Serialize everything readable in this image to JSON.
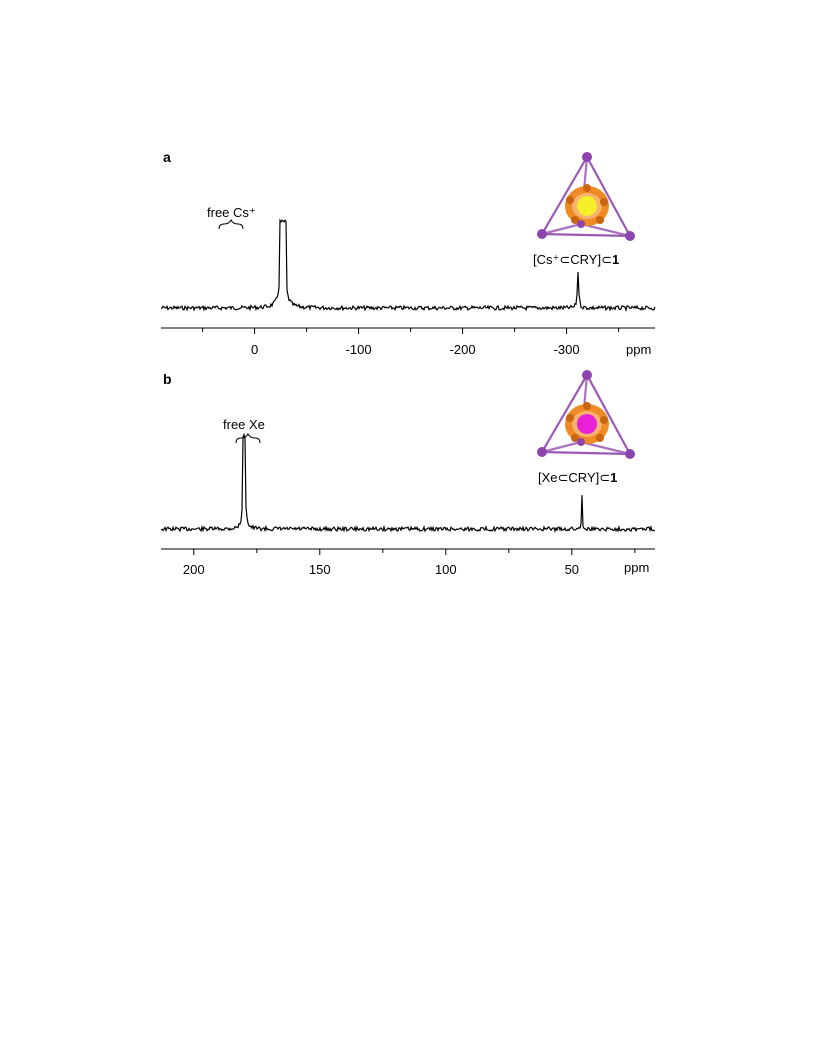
{
  "chart_data": [
    {
      "type": "line",
      "panel_letter": "a",
      "xlabel": "",
      "unit_label": "ppm",
      "x_reversed": true,
      "xlim": [
        90,
        -385
      ],
      "xticks": [
        0,
        -100,
        -200,
        -300
      ],
      "xtick_labels": [
        "0",
        "-100",
        "-200",
        "-300"
      ],
      "series": [
        {
          "peaks": [
            {
              "center": -27,
              "height": 1.0,
              "width": 2.2,
              "label": "free Cs⁺",
              "truncated": true
            },
            {
              "center": -311,
              "height": 0.45,
              "width": 0.8,
              "label": "[Cs⁺⊂CRY]⊂1"
            }
          ]
        }
      ],
      "annotations": [
        {
          "text": "free Cs⁺",
          "target": "free Cs+ peak"
        },
        {
          "text_main": "[Cs⁺⊂CRY]⊂",
          "text_bold": "1",
          "target": "encapsulated peak"
        }
      ],
      "inset": {
        "guest_color": "#f7ef2a"
      }
    },
    {
      "type": "line",
      "panel_letter": "b",
      "xlabel": "",
      "unit_label": "ppm",
      "x_reversed": true,
      "xlim": [
        213,
        17
      ],
      "xticks": [
        200,
        150,
        100,
        50
      ],
      "xtick_labels": [
        "200",
        "150",
        "100",
        "50"
      ],
      "series": [
        {
          "peaks": [
            {
              "center": 180,
              "height": 1.0,
              "width": 1.1,
              "label": "free Xe",
              "truncated": true
            },
            {
              "center": 46,
              "height": 0.42,
              "width": 0.4,
              "label": "[Xe⊂CRY]⊂1"
            }
          ]
        }
      ],
      "annotations": [
        {
          "text": "free Xe",
          "target": "free Xe peak"
        },
        {
          "text_main": "[Xe⊂CRY]⊂",
          "text_bold": "1",
          "target": "encapsulated peak"
        }
      ],
      "inset": {
        "guest_color": "#e820d8"
      }
    }
  ],
  "colors": {
    "tetrahedron_edge": "#9b59b6",
    "tetrahedron_vertex": "#8e44ad",
    "cage": "#f08a24"
  }
}
